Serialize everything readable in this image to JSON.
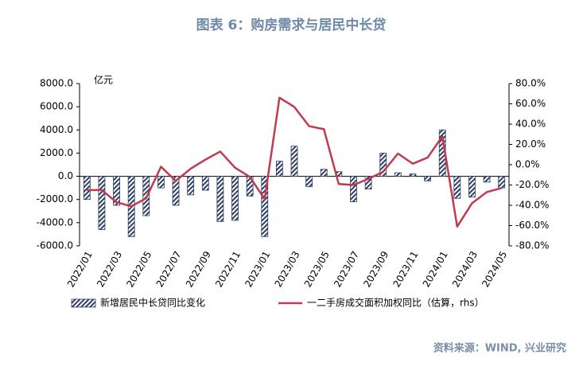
{
  "chart_data": {
    "type": "bar-line",
    "title": "图表 6：购房需求与居民中长贷",
    "y_label": "亿元",
    "source": "资料来源：WIND, 兴业研究",
    "categories": [
      "2022/01",
      null,
      "2022/03",
      null,
      "2022/05",
      null,
      "2022/07",
      null,
      "2022/09",
      null,
      "2022/11",
      null,
      "2023/01",
      null,
      "2023/03",
      null,
      "2023/05",
      null,
      "2023/07",
      null,
      "2023/09",
      null,
      "2023/11",
      null,
      "2024/01",
      null,
      "2024/03",
      null,
      "2024/05"
    ],
    "series": [
      {
        "name": "新增居民中长贷同比变化",
        "color": "#2e3f66",
        "type": "bar",
        "values": [
          -2000,
          -4600,
          -2500,
          -5200,
          -3400,
          -1000,
          -2500,
          -1600,
          -1200,
          -3900,
          -3800,
          -1700,
          -5200,
          1300,
          2600,
          -900,
          600,
          400,
          -2200,
          -1100,
          2000,
          300,
          200,
          -400,
          4000,
          -1900,
          -1800,
          -500,
          -1000
        ]
      },
      {
        "name": "一二手房成交面积加权同比（估算，rhs）",
        "color": "#c23a4e",
        "type": "line",
        "axis": "y2",
        "values": [
          -25,
          -25,
          -37,
          -41,
          -33,
          -2,
          -16,
          -4,
          5,
          13,
          -3,
          -12,
          -34,
          66,
          57,
          38,
          35,
          -19,
          -20,
          -14,
          -7,
          11,
          1,
          7,
          28,
          -61,
          -38,
          -27,
          -23
        ]
      }
    ],
    "ylim": [
      -6000,
      8000
    ],
    "yticks": [
      {
        "value": -6000,
        "label": "-6000.0"
      },
      {
        "value": -4000,
        "label": "-4000.0"
      },
      {
        "value": -2000,
        "label": "-2000.0"
      },
      {
        "value": 0,
        "label": "0.0"
      },
      {
        "value": 2000,
        "label": "2000.0"
      },
      {
        "value": 4000,
        "label": "4000.0"
      },
      {
        "value": 6000,
        "label": "6000.0"
      },
      {
        "value": 8000,
        "label": "8000.0"
      }
    ],
    "y2lim": [
      -80,
      80
    ],
    "y2ticks": [
      {
        "value": -80,
        "label": "-80.0%"
      },
      {
        "value": -60,
        "label": "-60.0%"
      },
      {
        "value": -40,
        "label": "-40.0%"
      },
      {
        "value": -20,
        "label": "-20.0%"
      },
      {
        "value": 0,
        "label": "0.0%"
      },
      {
        "value": 20,
        "label": "20.0%"
      },
      {
        "value": 40,
        "label": "40.0%"
      },
      {
        "value": 60,
        "label": "60.0%"
      },
      {
        "value": 80,
        "label": "80.0%"
      }
    ],
    "grid": false
  }
}
